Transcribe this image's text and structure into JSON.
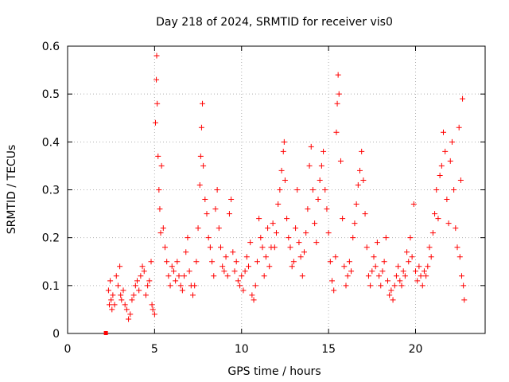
{
  "chart_data": {
    "type": "scatter",
    "title": "Day 218 of 2024, SRMTID for receiver vis0",
    "xlabel": "GPS time / hours",
    "ylabel": "SRMTID / TECUs",
    "xlim": [
      0,
      24
    ],
    "ylim": [
      0,
      0.6
    ],
    "x_ticks": [
      0,
      5,
      10,
      15,
      20
    ],
    "x_tick_labels": [
      "0",
      "5",
      "10",
      "15",
      "20"
    ],
    "y_ticks": [
      0,
      0.1,
      0.2,
      0.3,
      0.4,
      0.5,
      0.6
    ],
    "y_tick_labels": [
      "0",
      "0.1",
      "0.2",
      "0.3",
      "0.4",
      "0.5",
      "0.6"
    ],
    "grid": true,
    "marker": "+",
    "color": "#ff0000",
    "series": [
      {
        "name": "vis0",
        "outlier_points": [
          [
            2.2,
            0.0
          ]
        ],
        "points": [
          [
            2.35,
            0.09
          ],
          [
            2.4,
            0.06
          ],
          [
            2.45,
            0.11
          ],
          [
            2.5,
            0.07
          ],
          [
            2.55,
            0.05
          ],
          [
            2.6,
            0.08
          ],
          [
            2.7,
            0.06
          ],
          [
            2.8,
            0.12
          ],
          [
            2.9,
            0.1
          ],
          [
            3.0,
            0.14
          ],
          [
            3.05,
            0.08
          ],
          [
            3.1,
            0.07
          ],
          [
            3.2,
            0.09
          ],
          [
            3.3,
            0.06
          ],
          [
            3.4,
            0.05
          ],
          [
            3.5,
            0.03
          ],
          [
            3.6,
            0.04
          ],
          [
            3.7,
            0.07
          ],
          [
            3.8,
            0.08
          ],
          [
            3.9,
            0.1
          ],
          [
            4.0,
            0.11
          ],
          [
            4.1,
            0.09
          ],
          [
            4.2,
            0.12
          ],
          [
            4.3,
            0.14
          ],
          [
            4.4,
            0.13
          ],
          [
            4.5,
            0.08
          ],
          [
            4.6,
            0.1
          ],
          [
            4.7,
            0.11
          ],
          [
            4.8,
            0.15
          ],
          [
            4.85,
            0.06
          ],
          [
            4.9,
            0.05
          ],
          [
            5.0,
            0.04
          ],
          [
            5.05,
            0.44
          ],
          [
            5.1,
            0.53
          ],
          [
            5.12,
            0.58
          ],
          [
            5.15,
            0.48
          ],
          [
            5.2,
            0.37
          ],
          [
            5.25,
            0.3
          ],
          [
            5.3,
            0.26
          ],
          [
            5.35,
            0.21
          ],
          [
            5.4,
            0.35
          ],
          [
            5.5,
            0.22
          ],
          [
            5.6,
            0.18
          ],
          [
            5.7,
            0.15
          ],
          [
            5.8,
            0.12
          ],
          [
            5.9,
            0.1
          ],
          [
            6.0,
            0.14
          ],
          [
            6.1,
            0.13
          ],
          [
            6.2,
            0.11
          ],
          [
            6.3,
            0.15
          ],
          [
            6.4,
            0.12
          ],
          [
            6.5,
            0.1
          ],
          [
            6.6,
            0.09
          ],
          [
            6.7,
            0.12
          ],
          [
            6.8,
            0.17
          ],
          [
            6.9,
            0.2
          ],
          [
            7.0,
            0.13
          ],
          [
            7.1,
            0.1
          ],
          [
            7.2,
            0.08
          ],
          [
            7.3,
            0.1
          ],
          [
            7.4,
            0.15
          ],
          [
            7.5,
            0.22
          ],
          [
            7.6,
            0.31
          ],
          [
            7.65,
            0.37
          ],
          [
            7.7,
            0.43
          ],
          [
            7.75,
            0.48
          ],
          [
            7.8,
            0.35
          ],
          [
            7.9,
            0.28
          ],
          [
            8.0,
            0.25
          ],
          [
            8.1,
            0.2
          ],
          [
            8.2,
            0.18
          ],
          [
            8.3,
            0.15
          ],
          [
            8.4,
            0.12
          ],
          [
            8.5,
            0.26
          ],
          [
            8.6,
            0.3
          ],
          [
            8.7,
            0.22
          ],
          [
            8.8,
            0.18
          ],
          [
            8.9,
            0.14
          ],
          [
            9.0,
            0.13
          ],
          [
            9.1,
            0.16
          ],
          [
            9.2,
            0.12
          ],
          [
            9.3,
            0.25
          ],
          [
            9.4,
            0.28
          ],
          [
            9.5,
            0.17
          ],
          [
            9.6,
            0.13
          ],
          [
            9.7,
            0.15
          ],
          [
            9.8,
            0.11
          ],
          [
            9.9,
            0.1
          ],
          [
            10.0,
            0.12
          ],
          [
            10.1,
            0.09
          ],
          [
            10.2,
            0.13
          ],
          [
            10.3,
            0.16
          ],
          [
            10.4,
            0.14
          ],
          [
            10.5,
            0.19
          ],
          [
            10.6,
            0.08
          ],
          [
            10.7,
            0.07
          ],
          [
            10.8,
            0.1
          ],
          [
            10.9,
            0.15
          ],
          [
            11.0,
            0.24
          ],
          [
            11.1,
            0.2
          ],
          [
            11.2,
            0.18
          ],
          [
            11.3,
            0.12
          ],
          [
            11.4,
            0.16
          ],
          [
            11.5,
            0.22
          ],
          [
            11.6,
            0.14
          ],
          [
            11.7,
            0.18
          ],
          [
            11.8,
            0.23
          ],
          [
            11.9,
            0.18
          ],
          [
            12.0,
            0.21
          ],
          [
            12.1,
            0.27
          ],
          [
            12.2,
            0.3
          ],
          [
            12.3,
            0.34
          ],
          [
            12.4,
            0.38
          ],
          [
            12.45,
            0.4
          ],
          [
            12.5,
            0.32
          ],
          [
            12.6,
            0.24
          ],
          [
            12.7,
            0.2
          ],
          [
            12.8,
            0.18
          ],
          [
            12.9,
            0.14
          ],
          [
            13.0,
            0.15
          ],
          [
            13.1,
            0.22
          ],
          [
            13.2,
            0.3
          ],
          [
            13.3,
            0.19
          ],
          [
            13.4,
            0.16
          ],
          [
            13.5,
            0.12
          ],
          [
            13.6,
            0.17
          ],
          [
            13.7,
            0.21
          ],
          [
            13.8,
            0.26
          ],
          [
            13.9,
            0.35
          ],
          [
            14.0,
            0.39
          ],
          [
            14.1,
            0.3
          ],
          [
            14.2,
            0.23
          ],
          [
            14.3,
            0.19
          ],
          [
            14.4,
            0.28
          ],
          [
            14.5,
            0.32
          ],
          [
            14.6,
            0.35
          ],
          [
            14.7,
            0.38
          ],
          [
            14.8,
            0.3
          ],
          [
            14.9,
            0.26
          ],
          [
            15.0,
            0.21
          ],
          [
            15.1,
            0.15
          ],
          [
            15.2,
            0.11
          ],
          [
            15.3,
            0.09
          ],
          [
            15.4,
            0.16
          ],
          [
            15.45,
            0.42
          ],
          [
            15.5,
            0.48
          ],
          [
            15.55,
            0.54
          ],
          [
            15.6,
            0.5
          ],
          [
            15.7,
            0.36
          ],
          [
            15.8,
            0.24
          ],
          [
            15.9,
            0.14
          ],
          [
            16.0,
            0.1
          ],
          [
            16.1,
            0.12
          ],
          [
            16.2,
            0.15
          ],
          [
            16.3,
            0.13
          ],
          [
            16.4,
            0.2
          ],
          [
            16.5,
            0.23
          ],
          [
            16.6,
            0.27
          ],
          [
            16.7,
            0.31
          ],
          [
            16.8,
            0.34
          ],
          [
            16.9,
            0.38
          ],
          [
            17.0,
            0.32
          ],
          [
            17.1,
            0.25
          ],
          [
            17.2,
            0.18
          ],
          [
            17.3,
            0.12
          ],
          [
            17.4,
            0.1
          ],
          [
            17.5,
            0.13
          ],
          [
            17.6,
            0.16
          ],
          [
            17.7,
            0.14
          ],
          [
            17.8,
            0.19
          ],
          [
            17.9,
            0.12
          ],
          [
            18.0,
            0.1
          ],
          [
            18.1,
            0.13
          ],
          [
            18.2,
            0.15
          ],
          [
            18.3,
            0.2
          ],
          [
            18.4,
            0.11
          ],
          [
            18.5,
            0.08
          ],
          [
            18.6,
            0.09
          ],
          [
            18.7,
            0.07
          ],
          [
            18.8,
            0.1
          ],
          [
            18.9,
            0.12
          ],
          [
            19.0,
            0.14
          ],
          [
            19.1,
            0.11
          ],
          [
            19.2,
            0.1
          ],
          [
            19.3,
            0.13
          ],
          [
            19.4,
            0.12
          ],
          [
            19.5,
            0.17
          ],
          [
            19.6,
            0.15
          ],
          [
            19.7,
            0.2
          ],
          [
            19.8,
            0.16
          ],
          [
            19.9,
            0.27
          ],
          [
            20.0,
            0.13
          ],
          [
            20.1,
            0.11
          ],
          [
            20.2,
            0.14
          ],
          [
            20.3,
            0.12
          ],
          [
            20.4,
            0.1
          ],
          [
            20.5,
            0.13
          ],
          [
            20.6,
            0.12
          ],
          [
            20.7,
            0.14
          ],
          [
            20.8,
            0.18
          ],
          [
            20.9,
            0.16
          ],
          [
            21.0,
            0.21
          ],
          [
            21.1,
            0.25
          ],
          [
            21.2,
            0.3
          ],
          [
            21.3,
            0.24
          ],
          [
            21.4,
            0.33
          ],
          [
            21.5,
            0.35
          ],
          [
            21.6,
            0.42
          ],
          [
            21.7,
            0.38
          ],
          [
            21.8,
            0.28
          ],
          [
            21.9,
            0.23
          ],
          [
            22.0,
            0.36
          ],
          [
            22.1,
            0.4
          ],
          [
            22.2,
            0.3
          ],
          [
            22.3,
            0.22
          ],
          [
            22.4,
            0.18
          ],
          [
            22.5,
            0.43
          ],
          [
            22.55,
            0.16
          ],
          [
            22.6,
            0.32
          ],
          [
            22.65,
            0.12
          ],
          [
            22.7,
            0.49
          ],
          [
            22.75,
            0.1
          ],
          [
            22.8,
            0.07
          ]
        ]
      }
    ]
  }
}
